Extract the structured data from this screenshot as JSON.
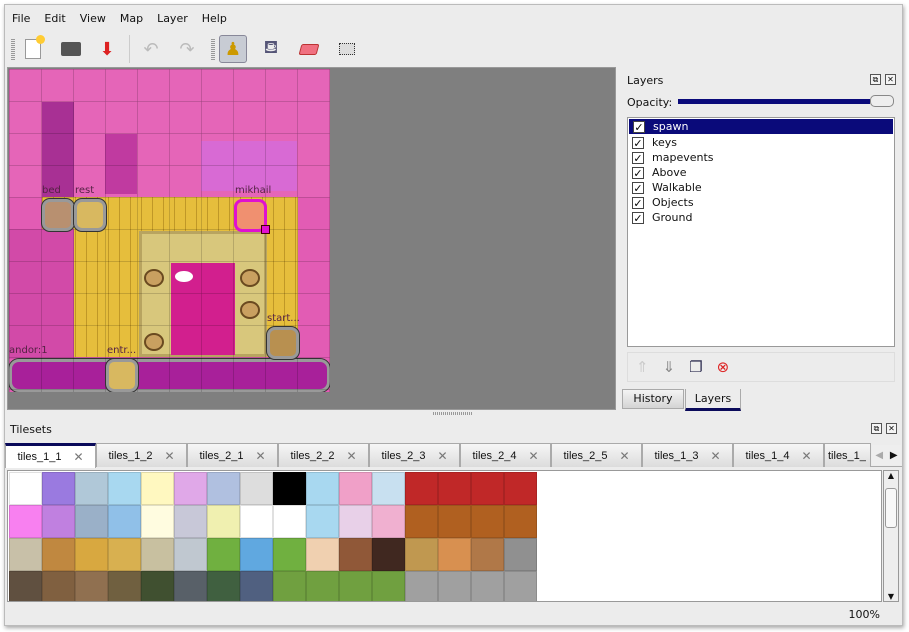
{
  "menu": [
    "File",
    "Edit",
    "View",
    "Map",
    "Layer",
    "Help"
  ],
  "toolbar": {
    "new": "new-file-icon",
    "open": "open-icon",
    "save": "save-icon",
    "undo": "undo-icon",
    "redo": "redo-icon",
    "stamp": "stamp-brush-icon",
    "fill": "bucket-fill-icon",
    "eraser": "eraser-icon",
    "select": "rect-select-icon",
    "active_tool": "stamp"
  },
  "map": {
    "objects": [
      "bed",
      "rest",
      "mikhail",
      "start...",
      "andor:1",
      "entr..."
    ]
  },
  "layers_panel": {
    "title": "Layers",
    "opacity_label": "Opacity:",
    "opacity": 1.0,
    "layers": [
      {
        "name": "spawn",
        "visible": true,
        "selected": true
      },
      {
        "name": "keys",
        "visible": true
      },
      {
        "name": "mapevents",
        "visible": true
      },
      {
        "name": "Above",
        "visible": true
      },
      {
        "name": "Walkable",
        "visible": true
      },
      {
        "name": "Objects",
        "visible": true
      },
      {
        "name": "Ground",
        "visible": true
      }
    ],
    "tabs": [
      "History",
      "Layers"
    ],
    "active_tab": "Layers"
  },
  "tilesets": {
    "title": "Tilesets",
    "tabs": [
      "tiles_1_1",
      "tiles_1_2",
      "tiles_2_1",
      "tiles_2_2",
      "tiles_2_3",
      "tiles_2_4",
      "tiles_2_5",
      "tiles_1_3",
      "tiles_1_4",
      "tiles_1_"
    ],
    "active": "tiles_1_1"
  },
  "status": {
    "zoom": "100%"
  }
}
